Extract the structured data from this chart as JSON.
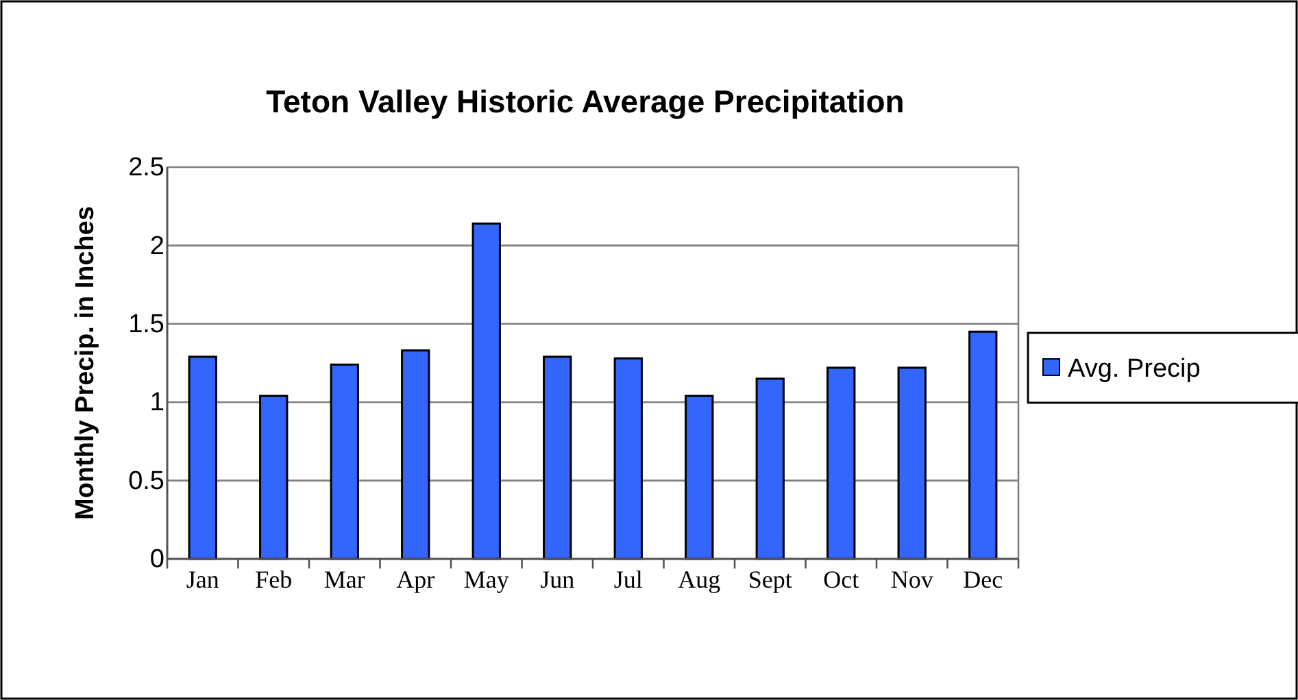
{
  "chart_data": {
    "type": "bar",
    "title": "Teton Valley Historic Average Precipitation",
    "ylabel": "Monthly Precip. in Inches",
    "categories": [
      "Jan",
      "Feb",
      "Mar",
      "Apr",
      "May",
      "Jun",
      "Jul",
      "Aug",
      "Sept",
      "Oct",
      "Nov",
      "Dec"
    ],
    "series": [
      {
        "name": "Avg. Precip",
        "color": "#3366ff",
        "values": [
          1.29,
          1.04,
          1.24,
          1.33,
          2.14,
          1.29,
          1.28,
          1.04,
          1.15,
          1.22,
          1.22,
          1.45
        ]
      }
    ],
    "ylim": [
      0,
      2.5
    ],
    "yticks": [
      0,
      0.5,
      1,
      1.5,
      2,
      2.5
    ],
    "grid": "y",
    "legend": "right"
  }
}
